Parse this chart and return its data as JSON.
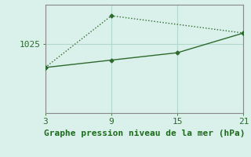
{
  "line1_x": [
    3,
    9,
    21
  ],
  "line1_y": [
    1015.5,
    1036.5,
    1029.5
  ],
  "line2_x": [
    3,
    9,
    15,
    21
  ],
  "line2_y": [
    1015.5,
    1018.5,
    1021.5,
    1029.5
  ],
  "line_color": "#2d6a2d",
  "bg_color": "#daf0eb",
  "grid_color": "#b0d8cc",
  "xlabel": "Graphe pression niveau de la mer (hPa)",
  "xticks": [
    3,
    9,
    15,
    21
  ],
  "yticks": [
    1025
  ],
  "xlim": [
    3,
    21
  ],
  "ylim": [
    997,
    1041
  ],
  "xlabel_color": "#1a6a1a",
  "tick_color": "#2d6a2d",
  "tick_fontsize": 8,
  "xlabel_fontsize": 8
}
